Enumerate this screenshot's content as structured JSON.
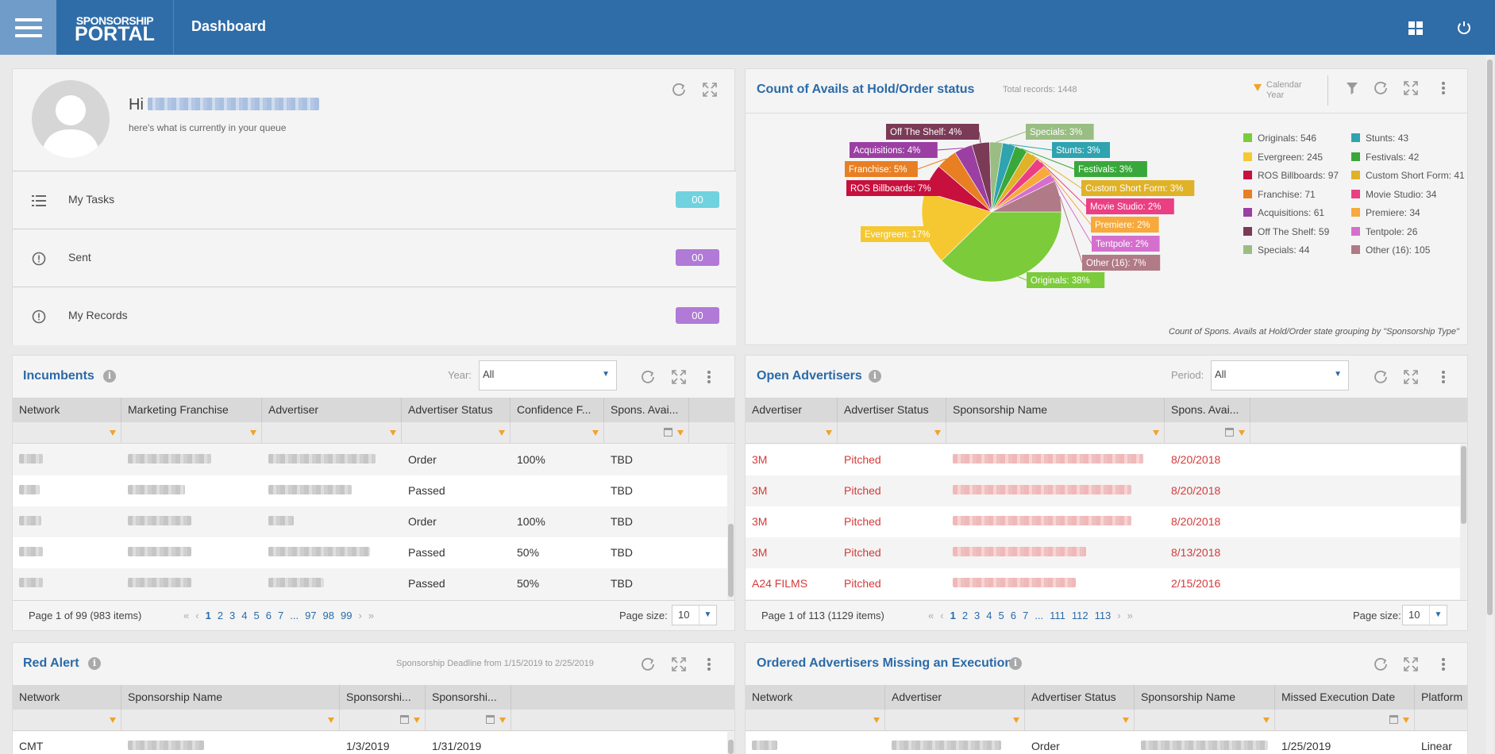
{
  "header": {
    "logo_line1": "SPONSORSHIP",
    "logo_line2": "PORTAL",
    "title": "Dashboard"
  },
  "welcome": {
    "hi": "Hi",
    "subtitle": "here's what is currently in your queue",
    "items": [
      {
        "label": "My Tasks",
        "count": "00",
        "color": "#6fd2de"
      },
      {
        "label": "Sent",
        "count": "00",
        "color": "#b07ad6"
      },
      {
        "label": "My Records",
        "count": "00",
        "color": "#b07ad6"
      }
    ]
  },
  "avails": {
    "title": "Count of Avails at Hold/Order status",
    "total": "Total records: 1448",
    "calendar_filter": "Calendar Year",
    "caption": "Count of Spons. Avails at Hold/Order state grouping by \"Sponsorship Type\"",
    "legend": [
      {
        "label": "Originals: 546",
        "color": "#7ccb3a"
      },
      {
        "label": "Stunts: 43",
        "color": "#2fa3b0"
      },
      {
        "label": "Evergreen: 245",
        "color": "#f5c831"
      },
      {
        "label": "Festivals: 42",
        "color": "#39a83a"
      },
      {
        "label": "ROS Billboards: 97",
        "color": "#c8103e"
      },
      {
        "label": "Custom Short Form: 41",
        "color": "#dfb227"
      },
      {
        "label": "Franchise: 71",
        "color": "#e87f23"
      },
      {
        "label": "Movie Studio: 34",
        "color": "#ea3f82"
      },
      {
        "label": "Acquisitions: 61",
        "color": "#9b3fa3"
      },
      {
        "label": "Premiere: 34",
        "color": "#f7a93c"
      },
      {
        "label": "Off The Shelf: 59",
        "color": "#7b3a56"
      },
      {
        "label": "Tentpole: 26",
        "color": "#d56fce"
      },
      {
        "label": "Specials: 44",
        "color": "#99bd83"
      },
      {
        "label": "Other (16): 105",
        "color": "#b07a86"
      }
    ]
  },
  "chart_data": {
    "type": "pie",
    "title": "Count of Avails at Hold/Order status",
    "slices": [
      {
        "name": "Originals",
        "value": 546,
        "label": "Originals: 38%",
        "color": "#7ccb3a"
      },
      {
        "name": "Evergreen",
        "value": 245,
        "label": "Evergreen: 17%",
        "color": "#f5c831"
      },
      {
        "name": "ROS Billboards",
        "value": 97,
        "label": "ROS Billboards: 7%",
        "color": "#c8103e"
      },
      {
        "name": "Franchise",
        "value": 71,
        "label": "Franchise: 5%",
        "color": "#e87f23"
      },
      {
        "name": "Acquisitions",
        "value": 61,
        "label": "Acquisitions: 4%",
        "color": "#9b3fa3"
      },
      {
        "name": "Off The Shelf",
        "value": 59,
        "label": "Off The Shelf: 4%",
        "color": "#7b3a56"
      },
      {
        "name": "Specials",
        "value": 44,
        "label": "Specials: 3%",
        "color": "#99bd83"
      },
      {
        "name": "Stunts",
        "value": 43,
        "label": "Stunts: 3%",
        "color": "#2fa3b0"
      },
      {
        "name": "Festivals",
        "value": 42,
        "label": "Festivals: 3%",
        "color": "#39a83a"
      },
      {
        "name": "Custom Short Form",
        "value": 41,
        "label": "Custom Short Form: 3%",
        "color": "#dfb227"
      },
      {
        "name": "Movie Studio",
        "value": 34,
        "label": "Movie Studio: 2%",
        "color": "#ea3f82"
      },
      {
        "name": "Premiere",
        "value": 34,
        "label": "Premiere: 2%",
        "color": "#f7a93c"
      },
      {
        "name": "Tentpole",
        "value": 26,
        "label": "Tentpole: 2%",
        "color": "#d56fce"
      },
      {
        "name": "Other (16)",
        "value": 105,
        "label": "Other (16): 7%",
        "color": "#b07a86"
      }
    ],
    "legend": "right"
  },
  "incumbents": {
    "title": "Incumbents",
    "year_label": "Year:",
    "year_value": "All",
    "columns": [
      "Network",
      "Marketing Franchise",
      "Advertiser",
      "Advertiser Status",
      "Confidence F...",
      "Spons. Avai..."
    ],
    "rows": [
      {
        "status": "Order",
        "confidence": "100%",
        "avail": "TBD"
      },
      {
        "status": "Passed",
        "confidence": "",
        "avail": "TBD"
      },
      {
        "status": "Order",
        "confidence": "100%",
        "avail": "TBD"
      },
      {
        "status": "Passed",
        "confidence": "50%",
        "avail": "TBD"
      },
      {
        "status": "Passed",
        "confidence": "50%",
        "avail": "TBD"
      }
    ],
    "page_info": "Page 1 of 99 (983 items)",
    "pages": [
      "1",
      "2",
      "3",
      "4",
      "5",
      "6",
      "7",
      "...",
      "97",
      "98",
      "99"
    ],
    "page_size_label": "Page size:",
    "page_size": "10"
  },
  "open_advertisers": {
    "title": "Open Advertisers",
    "period_label": "Period:",
    "period_value": "All",
    "columns": [
      "Advertiser",
      "Advertiser Status",
      "Sponsorship Name",
      "Spons. Avai..."
    ],
    "rows": [
      {
        "advertiser": "3M",
        "status": "Pitched",
        "date": "8/20/2018"
      },
      {
        "advertiser": "3M",
        "status": "Pitched",
        "date": "8/20/2018"
      },
      {
        "advertiser": "3M",
        "status": "Pitched",
        "date": "8/20/2018"
      },
      {
        "advertiser": "3M",
        "status": "Pitched",
        "date": "8/13/2018"
      },
      {
        "advertiser": "A24 FILMS",
        "status": "Pitched",
        "date": "2/15/2016"
      }
    ],
    "page_info": "Page 1 of 113 (1129 items)",
    "pages": [
      "1",
      "2",
      "3",
      "4",
      "5",
      "6",
      "7",
      "...",
      "111",
      "112",
      "113"
    ],
    "page_size_label": "Page size:",
    "page_size": "10"
  },
  "red_alert": {
    "title": "Red Alert",
    "deadline": "Sponsorship Deadline from 1/15/2019 to 2/25/2019",
    "columns": [
      "Network",
      "Sponsorship Name",
      "Sponsorshi...",
      "Sponsorshi..."
    ],
    "rows": [
      {
        "network": "CMT",
        "start": "1/3/2019",
        "end": "1/31/2019"
      }
    ]
  },
  "ordered_missing": {
    "title": "Ordered Advertisers Missing an Execution",
    "columns": [
      "Network",
      "Advertiser",
      "Advertiser Status",
      "Sponsorship Name",
      "Missed Execution Date",
      "Platform"
    ],
    "rows": [
      {
        "status": "Order",
        "date": "1/25/2019",
        "platform": "Linear"
      }
    ]
  }
}
